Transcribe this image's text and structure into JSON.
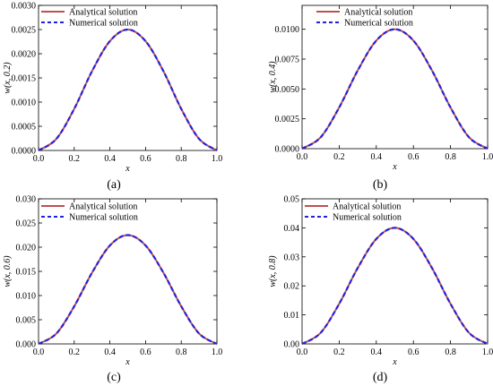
{
  "colors": {
    "analytical": "#c0504d",
    "numerical": "#2222dd",
    "axis": "#000000",
    "background": "#ffffff"
  },
  "chart_data": [
    {
      "type": "line",
      "panel_label": "(a)",
      "panel_letter": "a",
      "xlabel": "x",
      "ylabel": "w(x, 0.2)",
      "xlim": [
        0,
        1
      ],
      "ylim": [
        0,
        0.003
      ],
      "xticks": [
        "0.0",
        "0.2",
        "0.4",
        "0.6",
        "0.8",
        "1.0"
      ],
      "yticks": [
        "0.0000",
        "0.0005",
        "0.0010",
        "0.0015",
        "0.0020",
        "0.0025",
        "0.0030"
      ],
      "legend_position": "top-left",
      "grid": false,
      "x": [
        0.0,
        0.1,
        0.2,
        0.3,
        0.4,
        0.5,
        0.6,
        0.7,
        0.8,
        0.9,
        1.0
      ],
      "series": [
        {
          "name": "Analytical solution",
          "style": "solid",
          "values": [
            0.0,
            0.00024,
            0.00086,
            0.00164,
            0.00226,
            0.0025,
            0.00226,
            0.00164,
            0.00086,
            0.00024,
            0.0
          ]
        },
        {
          "name": "Numerical solution",
          "style": "dashed",
          "values": [
            0.0,
            0.00024,
            0.00086,
            0.00164,
            0.00226,
            0.0025,
            0.00226,
            0.00164,
            0.00086,
            0.00024,
            0.0
          ]
        }
      ]
    },
    {
      "type": "line",
      "panel_label": "(b)",
      "panel_letter": "b",
      "xlabel": "x",
      "ylabel": "w(x, 0.4)",
      "xlim": [
        0,
        1
      ],
      "ylim": [
        0,
        0.012
      ],
      "xticks": [
        "0.0",
        "0.2",
        "0.4",
        "0.6",
        "0.8",
        "1.0"
      ],
      "yticks": [
        "0.0000",
        "0.0025",
        "0.0050",
        "0.0075",
        "0.0100"
      ],
      "legend_position": "top-right",
      "grid": false,
      "x": [
        0.0,
        0.1,
        0.2,
        0.3,
        0.4,
        0.5,
        0.6,
        0.7,
        0.8,
        0.9,
        1.0
      ],
      "series": [
        {
          "name": "Analytical solution",
          "style": "solid",
          "values": [
            0.0,
            0.00095,
            0.00345,
            0.00655,
            0.00905,
            0.01,
            0.00905,
            0.00655,
            0.00345,
            0.00095,
            0.0
          ]
        },
        {
          "name": "Numerical solution",
          "style": "dashed",
          "values": [
            0.0,
            0.00095,
            0.00345,
            0.00655,
            0.00905,
            0.01,
            0.00905,
            0.00655,
            0.00345,
            0.00095,
            0.0
          ]
        }
      ]
    },
    {
      "type": "line",
      "panel_label": "(c)",
      "panel_letter": "c",
      "xlabel": "x",
      "ylabel": "w(x, 0.6)",
      "xlim": [
        0,
        1
      ],
      "ylim": [
        0,
        0.03
      ],
      "xticks": [
        "0.0",
        "0.2",
        "0.4",
        "0.6",
        "0.8",
        "1.0"
      ],
      "yticks": [
        "0.000",
        "0.005",
        "0.010",
        "0.015",
        "0.020",
        "0.025",
        "0.030"
      ],
      "legend_position": "top-left",
      "grid": false,
      "x": [
        0.0,
        0.1,
        0.2,
        0.3,
        0.4,
        0.5,
        0.6,
        0.7,
        0.8,
        0.9,
        1.0
      ],
      "series": [
        {
          "name": "Analytical solution",
          "style": "solid",
          "values": [
            0.0,
            0.00215,
            0.00777,
            0.01473,
            0.02035,
            0.0225,
            0.02035,
            0.01473,
            0.00777,
            0.00215,
            0.0
          ]
        },
        {
          "name": "Numerical solution",
          "style": "dashed",
          "values": [
            0.0,
            0.00215,
            0.00777,
            0.01473,
            0.02035,
            0.0225,
            0.02035,
            0.01473,
            0.00777,
            0.00215,
            0.0
          ]
        }
      ]
    },
    {
      "type": "line",
      "panel_label": "(d)",
      "panel_letter": "d",
      "xlabel": "x",
      "ylabel": "w(x, 0.8)",
      "xlim": [
        0,
        1
      ],
      "ylim": [
        0,
        0.05
      ],
      "xticks": [
        "0.0",
        "0.2",
        "0.4",
        "0.6",
        "0.8",
        "1.0"
      ],
      "yticks": [
        "0.00",
        "0.01",
        "0.02",
        "0.03",
        "0.04",
        "0.05"
      ],
      "legend_position": "top-left",
      "grid": false,
      "x": [
        0.0,
        0.1,
        0.2,
        0.3,
        0.4,
        0.5,
        0.6,
        0.7,
        0.8,
        0.9,
        1.0
      ],
      "series": [
        {
          "name": "Analytical solution",
          "style": "solid",
          "values": [
            0.0,
            0.00382,
            0.01382,
            0.02618,
            0.03618,
            0.04,
            0.03618,
            0.02618,
            0.01382,
            0.00382,
            0.0
          ]
        },
        {
          "name": "Numerical solution",
          "style": "dashed",
          "values": [
            0.0,
            0.00382,
            0.01382,
            0.02618,
            0.03618,
            0.04,
            0.03618,
            0.02618,
            0.01382,
            0.00382,
            0.0
          ]
        }
      ]
    }
  ]
}
